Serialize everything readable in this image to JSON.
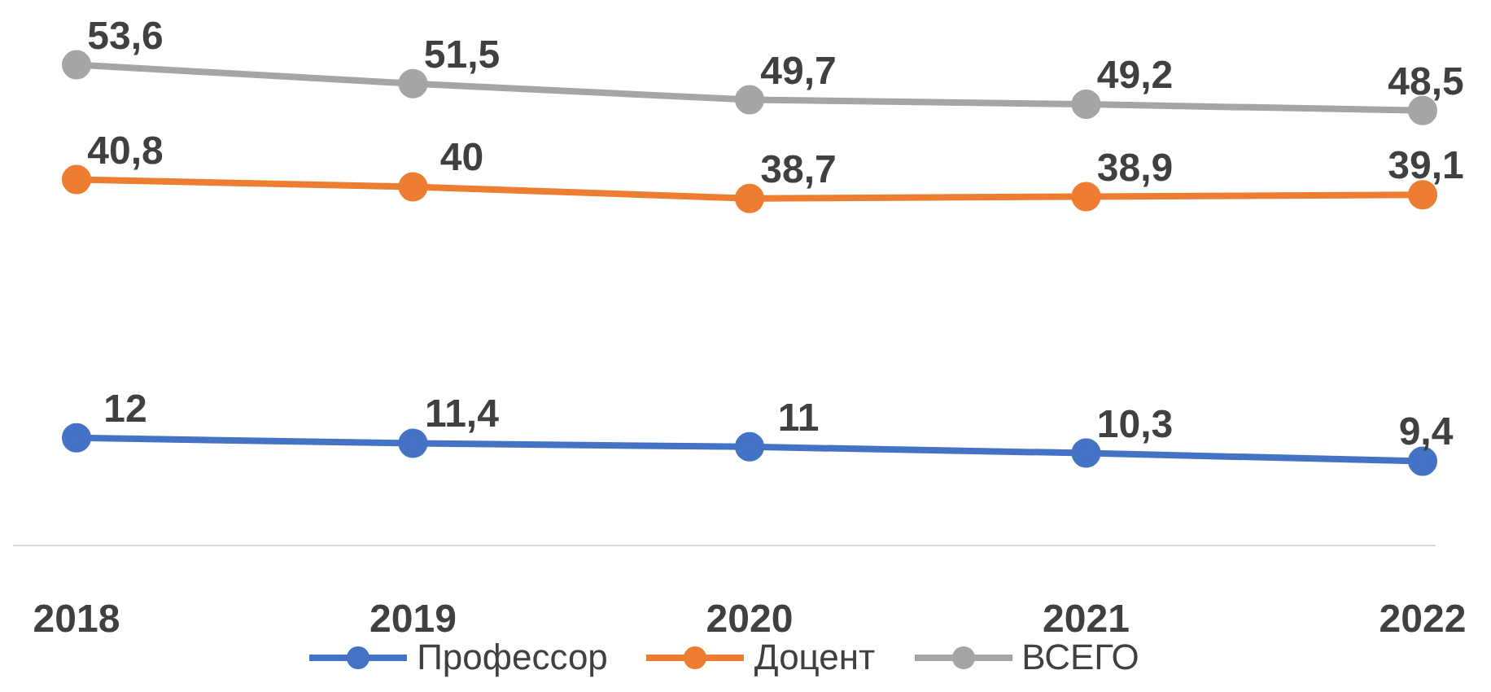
{
  "chart_data": {
    "type": "line",
    "categories": [
      "2018",
      "2019",
      "2020",
      "2021",
      "2022"
    ],
    "series": [
      {
        "name": "Профессор",
        "color": "#4472c4",
        "values": [
          12,
          11.4,
          11,
          10.3,
          9.4
        ],
        "value_labels": [
          "12",
          "11,4",
          "11",
          "10,3",
          "9,4"
        ]
      },
      {
        "name": "Доцент",
        "color": "#ed7d31",
        "values": [
          40.8,
          40,
          38.7,
          38.9,
          39.1
        ],
        "value_labels": [
          "40,8",
          "40",
          "38,7",
          "38,9",
          "39,1"
        ]
      },
      {
        "name": "ВСЕГО",
        "color": "#a5a5a5",
        "values": [
          53.6,
          51.5,
          49.7,
          49.2,
          48.5
        ],
        "value_labels": [
          "53,6",
          "51,5",
          "49,7",
          "49,2",
          "48,5"
        ]
      }
    ],
    "grid": false,
    "legend": "bottom",
    "marker": "circle",
    "line_style": "solid"
  }
}
